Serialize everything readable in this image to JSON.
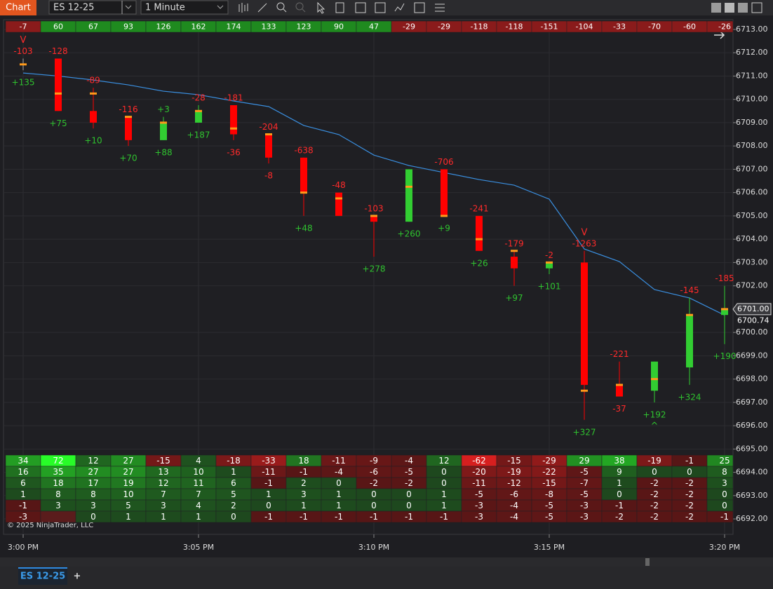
{
  "toolbar": {
    "app_label": "Chart",
    "instrument": "ES 12-25",
    "interval": "1 Minute"
  },
  "copyright": "© 2025 NinjaTrader, LLC",
  "tabs": [
    "ES 12-25",
    "+"
  ],
  "chart_data": {
    "type": "candlestick",
    "up_color": "#32cd32",
    "down_color": "#ff0000",
    "poc_color": "#ff9a1a",
    "xlim": [
      -0.56,
      20.24
    ],
    "ylim": [
      6691.34,
      6713.42
    ],
    "xticks": [
      {
        "value": 0,
        "label": "3:00 PM"
      },
      {
        "value": 5,
        "label": "3:05 PM"
      },
      {
        "value": 10,
        "label": "3:10 PM"
      },
      {
        "value": 15,
        "label": "3:15 PM"
      },
      {
        "value": 20,
        "label": "3:20 PM"
      }
    ],
    "yticks": [
      {
        "value": 6713,
        "label": "6713.00"
      },
      {
        "value": 6712,
        "label": "6712.00"
      },
      {
        "value": 6711,
        "label": "6711.00"
      },
      {
        "value": 6710,
        "label": "6710.00"
      },
      {
        "value": 6709,
        "label": "6709.00"
      },
      {
        "value": 6708,
        "label": "6708.00"
      },
      {
        "value": 6707,
        "label": "6707.00"
      },
      {
        "value": 6706,
        "label": "6706.00"
      },
      {
        "value": 6705,
        "label": "6705.00"
      },
      {
        "value": 6704,
        "label": "6704.00"
      },
      {
        "value": 6703,
        "label": "6703.00"
      },
      {
        "value": 6702,
        "label": "6702.00"
      },
      {
        "value": 6700,
        "label": "6700.00"
      },
      {
        "value": 6699,
        "label": "6699.00"
      },
      {
        "value": 6698,
        "label": "6698.00"
      },
      {
        "value": 6697,
        "label": "6697.00"
      },
      {
        "value": 6696,
        "label": "6696.00"
      },
      {
        "value": 6695,
        "label": "6695.00"
      },
      {
        "value": 6694,
        "label": "6694.00"
      },
      {
        "value": 6693,
        "label": "6693.00"
      },
      {
        "value": 6692,
        "label": "6692.00"
      }
    ],
    "price_markers": [
      {
        "value": 6701,
        "label": "6701.00"
      },
      {
        "value": 6700.74,
        "label": "6700.74"
      }
    ],
    "candles": [
      {
        "open": 6711.5,
        "high": 6711.75,
        "low": 6711.25,
        "close": 6711.5,
        "poc": 6711.5,
        "top_label": "-103",
        "bottom_label": "+135"
      },
      {
        "open": 6711.75,
        "high": 6711.75,
        "low": 6709.5,
        "close": 6709.5,
        "poc": 6710.25,
        "top_label": "-128",
        "bottom_label": "+75"
      },
      {
        "open": 6709.5,
        "high": 6710.5,
        "low": 6708.75,
        "close": 6709,
        "poc": 6710.25,
        "top_label": "-89",
        "bottom_label": "+10"
      },
      {
        "open": 6709.25,
        "high": 6709.25,
        "low": 6708,
        "close": 6708.25,
        "poc": 6709.25,
        "top_label": "-116",
        "bottom_label": "+70"
      },
      {
        "open": 6708.25,
        "high": 6709.25,
        "low": 6708.25,
        "close": 6709,
        "poc": 6709,
        "top_label": "+3",
        "bottom_label": "+88"
      },
      {
        "open": 6709,
        "high": 6709.75,
        "low": 6709,
        "close": 6709.5,
        "poc": 6709.5,
        "top_label": "-28",
        "bottom_label": "+187"
      },
      {
        "open": 6709.75,
        "high": 6709.75,
        "low": 6708.25,
        "close": 6708.5,
        "poc": 6708.75,
        "top_label": "-181",
        "bottom_label": "-36"
      },
      {
        "open": 6708.5,
        "high": 6708.5,
        "low": 6707.25,
        "close": 6707.5,
        "poc": 6708.5,
        "top_label": "-204",
        "bottom_label": "-8"
      },
      {
        "open": 6707.5,
        "high": 6707.5,
        "low": 6705,
        "close": 6706,
        "poc": 6706,
        "top_label": "-638",
        "bottom_label": "+48"
      },
      {
        "open": 6706,
        "high": 6706,
        "low": 6705,
        "close": 6705,
        "poc": 6705.75,
        "top_label": "-48",
        "bottom_label": null
      },
      {
        "open": 6705,
        "high": 6705,
        "low": 6703.25,
        "close": 6704.75,
        "poc": 6705,
        "top_label": "-103",
        "bottom_label": "+278"
      },
      {
        "open": 6704.75,
        "high": 6707,
        "low": 6704.75,
        "close": 6707,
        "poc": 6706.25,
        "top_label": null,
        "bottom_label": "+260"
      },
      {
        "open": 6707,
        "high": 6707,
        "low": 6705,
        "close": 6705,
        "poc": 6705,
        "top_label": "-706",
        "bottom_label": "+9"
      },
      {
        "open": 6705,
        "high": 6705,
        "low": 6703.5,
        "close": 6703.5,
        "poc": 6704,
        "top_label": "-241",
        "bottom_label": "+26"
      },
      {
        "open": 6703.25,
        "high": 6703.5,
        "low": 6702,
        "close": 6702.75,
        "poc": 6703.5,
        "top_label": "-179",
        "bottom_label": "+97"
      },
      {
        "open": 6702.75,
        "high": 6703,
        "low": 6702.5,
        "close": 6703,
        "poc": 6703,
        "top_label": "-2",
        "bottom_label": "+101"
      },
      {
        "open": 6703,
        "high": 6703.5,
        "low": 6696.25,
        "close": 6697.75,
        "poc": 6697.5,
        "top_label": "-1263",
        "bottom_label": "+327"
      },
      {
        "open": 6697.75,
        "high": 6698.75,
        "low": 6697.25,
        "close": 6697.25,
        "poc": 6697.75,
        "top_label": "-221",
        "bottom_label": "-37"
      },
      {
        "open": 6697.5,
        "high": 6698.75,
        "low": 6697,
        "close": 6698.75,
        "poc": 6698,
        "top_label": null,
        "bottom_label": "+192"
      },
      {
        "open": 6698.5,
        "high": 6701.5,
        "low": 6697.75,
        "close": 6700.75,
        "poc": 6700.75,
        "top_label": "-145",
        "bottom_label": "+324"
      },
      {
        "open": 6700.75,
        "high": 6702,
        "low": 6699.5,
        "close": 6701,
        "poc": 6701,
        "top_label": "-185",
        "bottom_label": "+190"
      }
    ],
    "signals": [
      {
        "index": 0,
        "label": "V",
        "side": "top"
      },
      {
        "index": 16,
        "label": "V",
        "side": "top"
      },
      {
        "index": 18,
        "label": "^",
        "side": "bottom"
      }
    ],
    "vwap": {
      "color": "#3a8fe0",
      "values": [
        6711.13,
        6711.0,
        6710.83,
        6710.62,
        6710.35,
        6710.2,
        6709.93,
        6709.69,
        6708.88,
        6708.49,
        6707.61,
        6707.16,
        6706.86,
        6706.56,
        6706.32,
        6705.72,
        6703.58,
        6703.04,
        6701.84,
        6701.48,
        6700.74
      ]
    },
    "delta_row": [
      -7,
      60,
      67,
      93,
      126,
      162,
      174,
      133,
      123,
      90,
      47,
      -29,
      -29,
      -118,
      -118,
      -151,
      -104,
      -33,
      -70,
      -60,
      -26
    ],
    "grid_rows": [
      [
        34,
        72,
        12,
        27,
        -15,
        4,
        -18,
        -33,
        18,
        -11,
        -9,
        -4,
        12,
        -62,
        -15,
        -29,
        29,
        38,
        -19,
        -1,
        25
      ],
      [
        16,
        35,
        27,
        27,
        13,
        10,
        1,
        -11,
        -1,
        -4,
        -6,
        -5,
        0,
        -20,
        -19,
        -22,
        -5,
        9,
        0,
        0,
        8
      ],
      [
        6,
        18,
        17,
        19,
        12,
        11,
        6,
        -1,
        2,
        0,
        -2,
        -2,
        0,
        -11,
        -12,
        -15,
        -7,
        1,
        -2,
        -2,
        3
      ],
      [
        1,
        8,
        8,
        10,
        7,
        7,
        5,
        1,
        3,
        1,
        0,
        0,
        1,
        -5,
        -6,
        -8,
        -5,
        0,
        -2,
        -2,
        0
      ],
      [
        -1,
        3,
        3,
        5,
        3,
        4,
        2,
        0,
        1,
        1,
        0,
        0,
        1,
        -3,
        -4,
        -5,
        -3,
        -1,
        -2,
        -2,
        0
      ],
      [
        -3,
        null,
        0,
        1,
        1,
        1,
        0,
        -1,
        -1,
        -1,
        -1,
        -1,
        -1,
        -3,
        -4,
        -5,
        -3,
        -2,
        -2,
        -2,
        -1
      ]
    ]
  }
}
